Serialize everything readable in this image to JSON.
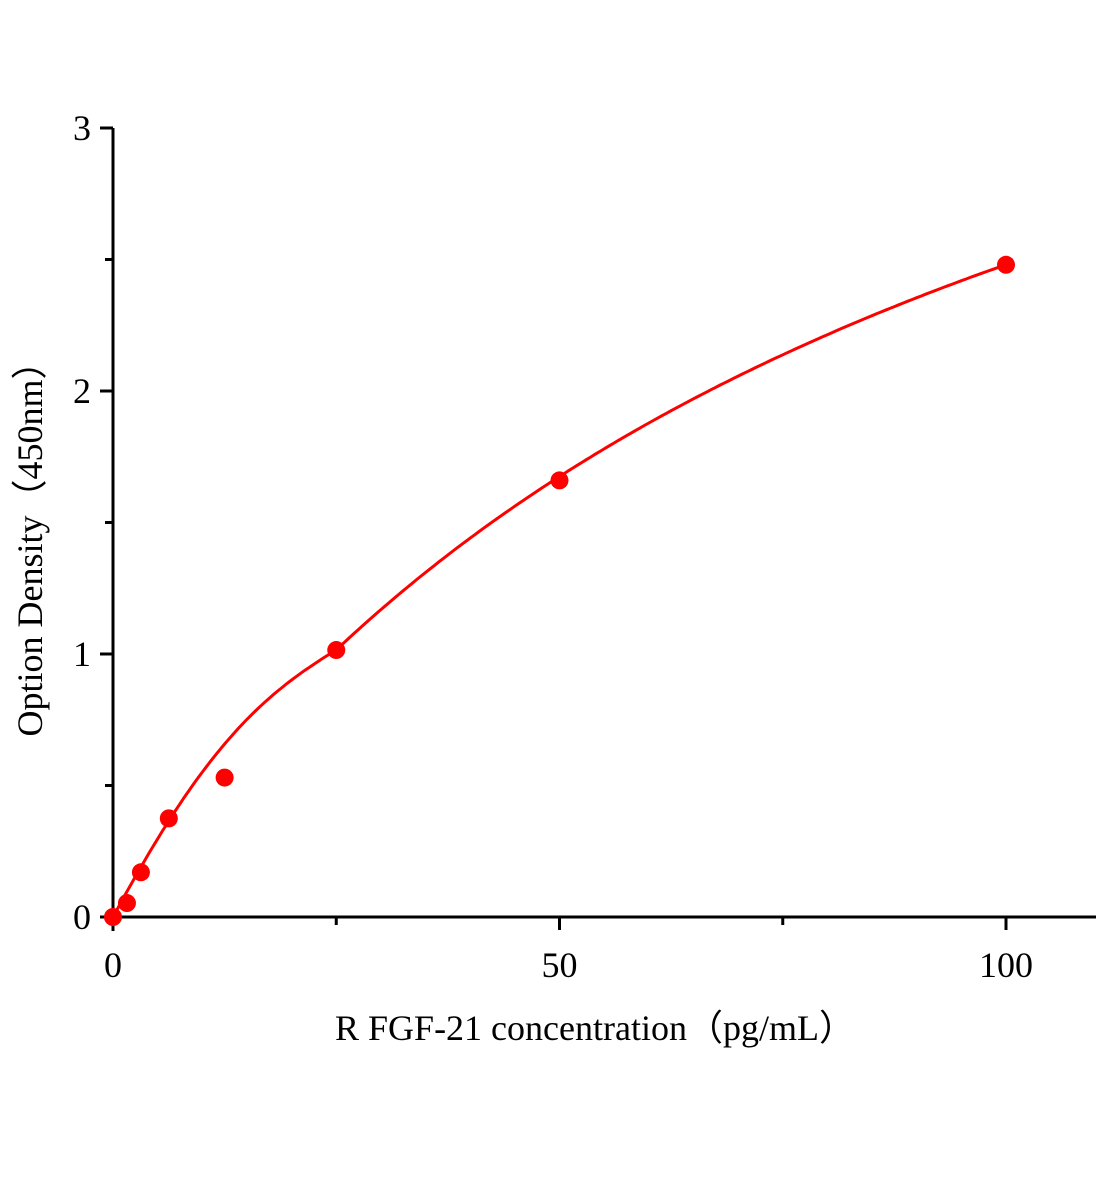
{
  "chart_data": {
    "type": "scatter",
    "title": "",
    "xlabel": "R FGF-21 concentration（pg/mL）",
    "ylabel": "Option Density（450nm）",
    "xlim": [
      0,
      110
    ],
    "ylim": [
      0,
      3
    ],
    "x_ticks": [
      0,
      50,
      100
    ],
    "x_tick_labels": [
      "0",
      "50",
      "100"
    ],
    "x_minor_ticks": [
      25,
      75
    ],
    "y_ticks": [
      0,
      1,
      2,
      3
    ],
    "y_tick_labels": [
      "0",
      "1",
      "2",
      "3"
    ],
    "y_minor_ticks": [
      0.5,
      1.5,
      2.5
    ],
    "grid": false,
    "color": "#ff0000",
    "series": [
      {
        "x": [
          0,
          1.5625,
          3.125,
          6.25,
          12.5,
          25,
          50,
          100
        ],
        "y": [
          0.0,
          0.053,
          0.17,
          0.375,
          0.53,
          1.015,
          1.66,
          2.48
        ],
        "fit_line": true
      }
    ]
  }
}
